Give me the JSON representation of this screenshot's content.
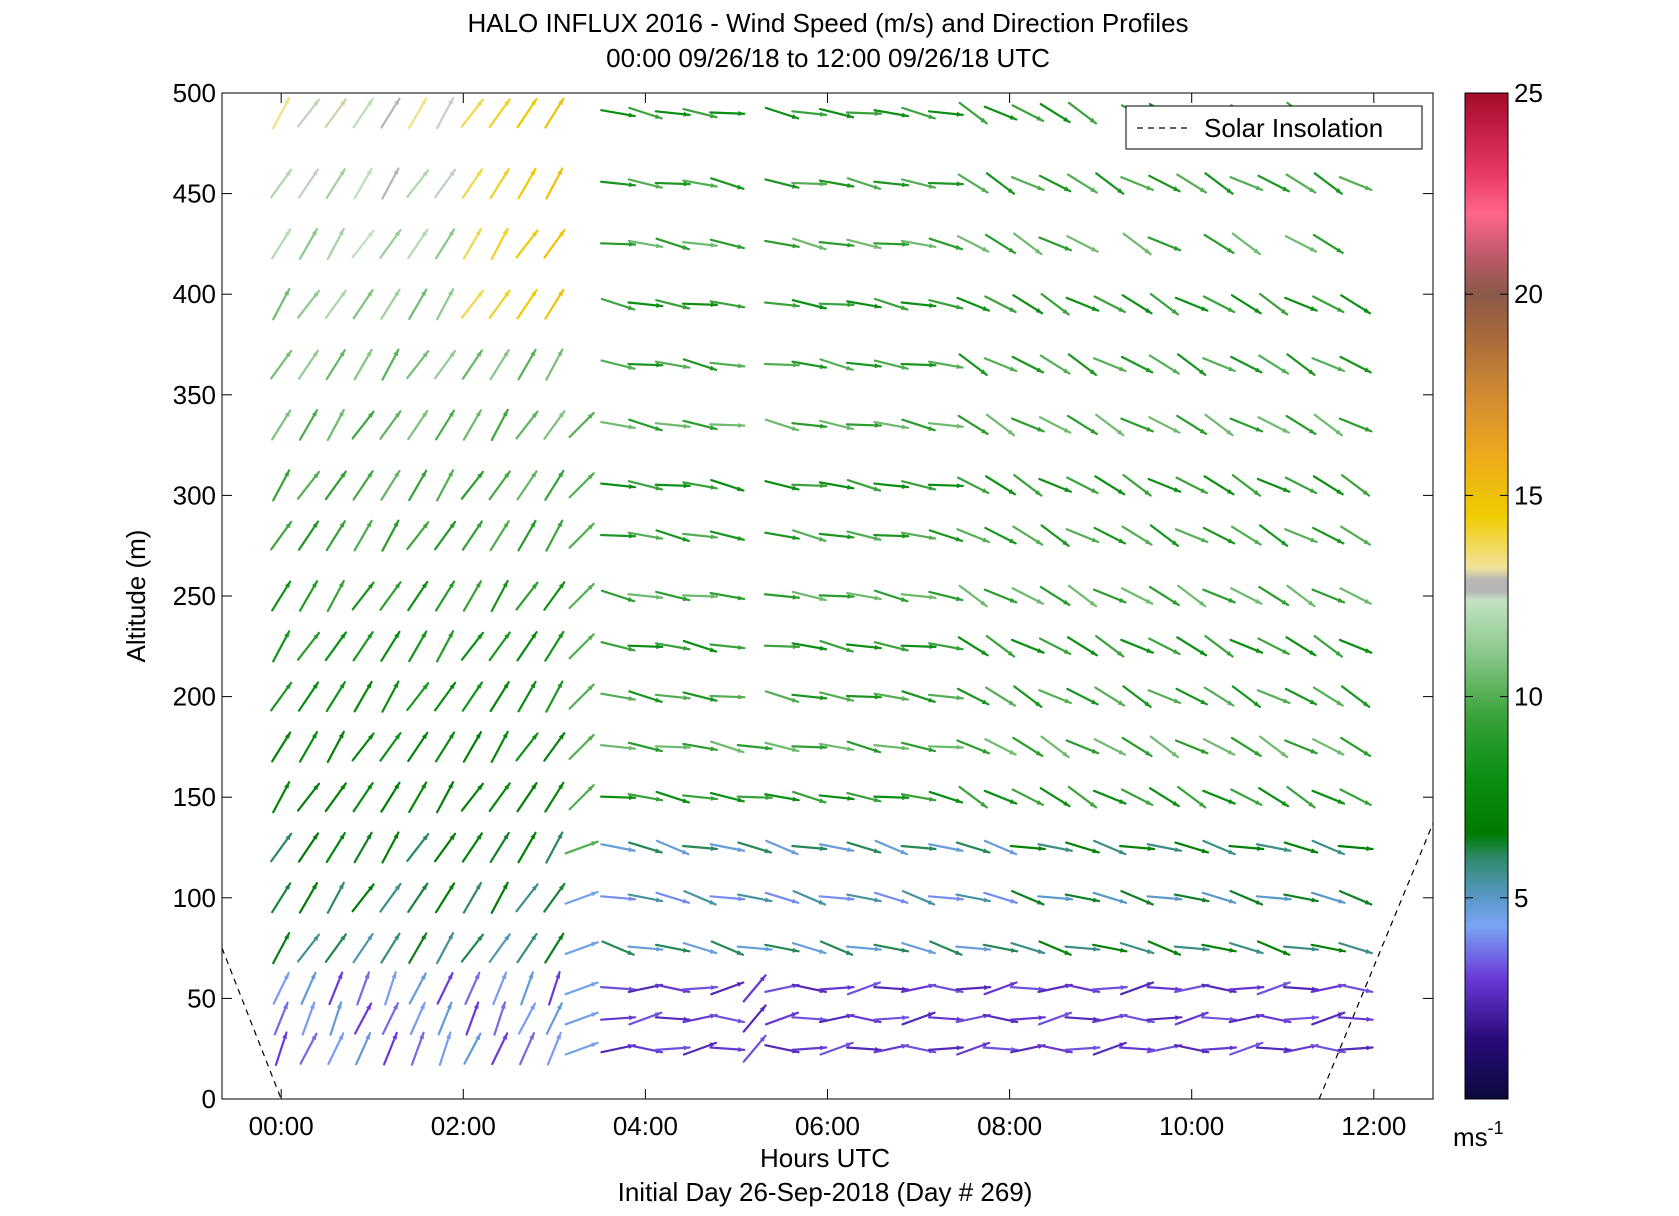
{
  "chart_data": {
    "type": "vector-field",
    "title": "HALO INFLUX 2016 - Wind Speed (m/s) and Direction Profiles",
    "subtitle": "00:00 09/26/18 to 12:00 09/26/18  UTC",
    "xlabel": "Hours UTC",
    "xlabel2": "Initial Day 26-Sep-2018 (Day # 269)",
    "ylabel": "Altitude (m)",
    "xlim": [
      -0.65,
      12.65
    ],
    "ylim": [
      0,
      500
    ],
    "x_ticks": [
      {
        "value": 0,
        "label": "00:00"
      },
      {
        "value": 2,
        "label": "02:00"
      },
      {
        "value": 4,
        "label": "04:00"
      },
      {
        "value": 6,
        "label": "06:00"
      },
      {
        "value": 8,
        "label": "08:00"
      },
      {
        "value": 10,
        "label": "10:00"
      },
      {
        "value": 12,
        "label": "12:00"
      }
    ],
    "y_ticks": [
      {
        "value": 0,
        "label": "0"
      },
      {
        "value": 50,
        "label": "50"
      },
      {
        "value": 100,
        "label": "100"
      },
      {
        "value": 150,
        "label": "150"
      },
      {
        "value": 200,
        "label": "200"
      },
      {
        "value": 250,
        "label": "250"
      },
      {
        "value": 300,
        "label": "300"
      },
      {
        "value": 350,
        "label": "350"
      },
      {
        "value": 400,
        "label": "400"
      },
      {
        "value": 450,
        "label": "450"
      },
      {
        "value": 500,
        "label": "500"
      }
    ],
    "legend": {
      "label": "Solar Insolation",
      "position": "top-right"
    },
    "solar_insolation": [
      {
        "x": [
          -0.65,
          0.0
        ],
        "y": [
          75,
          0
        ]
      },
      {
        "x": [
          11.4,
          12.65
        ],
        "y": [
          0,
          137
        ]
      }
    ],
    "colorbar": {
      "min": 0,
      "max": 25,
      "ticks": [
        {
          "value": 5,
          "label": "5"
        },
        {
          "value": 10,
          "label": "10"
        },
        {
          "value": 15,
          "label": "15"
        },
        {
          "value": 20,
          "label": "20"
        },
        {
          "value": 25,
          "label": "25"
        }
      ],
      "unit_base": "ms",
      "unit_exp": "-1",
      "stops": [
        {
          "v": 0,
          "c": "#0a0a3c"
        },
        {
          "v": 1.5,
          "c": "#2a0a7a"
        },
        {
          "v": 3.0,
          "c": "#6a3ad8"
        },
        {
          "v": 4.3,
          "c": "#7aa4f4"
        },
        {
          "v": 5.0,
          "c": "#5a98c8"
        },
        {
          "v": 6.0,
          "c": "#2e8a6a"
        },
        {
          "v": 6.6,
          "c": "#007a00"
        },
        {
          "v": 8.0,
          "c": "#0a8f12"
        },
        {
          "v": 9.5,
          "c": "#3aa23a"
        },
        {
          "v": 11.0,
          "c": "#86c686"
        },
        {
          "v": 12.4,
          "c": "#c4e2c4"
        },
        {
          "v": 12.6,
          "c": "#b6b6b6"
        },
        {
          "v": 12.9,
          "c": "#b6b6b6"
        },
        {
          "v": 13.2,
          "c": "#f2e29a"
        },
        {
          "v": 14.5,
          "c": "#f0cc00"
        },
        {
          "v": 16.0,
          "c": "#ecaa1c"
        },
        {
          "v": 17.5,
          "c": "#d08a32"
        },
        {
          "v": 19.0,
          "c": "#a8683c"
        },
        {
          "v": 20.0,
          "c": "#8a5a4a"
        },
        {
          "v": 21.0,
          "c": "#c05a6a"
        },
        {
          "v": 22.0,
          "c": "#ff6688"
        },
        {
          "v": 23.0,
          "c": "#e83a64"
        },
        {
          "v": 25.0,
          "c": "#a40a2a"
        }
      ]
    },
    "vector_columns": {
      "times": [
        0.0,
        0.3,
        0.6,
        0.9,
        1.2,
        1.5,
        1.8,
        2.1,
        2.4,
        2.7,
        3.0,
        3.3,
        3.7,
        4.0,
        4.3,
        4.6,
        4.9,
        5.2,
        5.5,
        5.8,
        6.1,
        6.4,
        6.7,
        7.0,
        7.3,
        7.6,
        7.9,
        8.2,
        8.5,
        8.8,
        9.1,
        9.4,
        9.7,
        10.0,
        10.3,
        10.6,
        10.9,
        11.2,
        11.5,
        11.8
      ],
      "altitudes": [
        25,
        40,
        55,
        75,
        100,
        125,
        150,
        175,
        200,
        225,
        250,
        280,
        305,
        335,
        365,
        395,
        425,
        455,
        490
      ],
      "note": "dir: direction the wind blows toward, degrees clockwise from north; spd: m/s. Fields per column: a (altitudes present), s (speed), d (direction)."
    }
  }
}
